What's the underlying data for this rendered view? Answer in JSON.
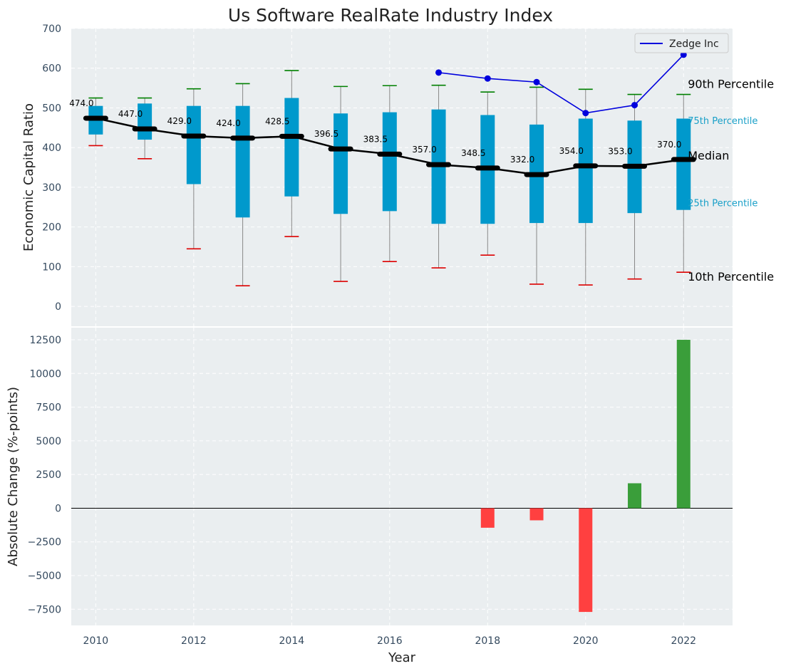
{
  "chart_data": [
    {
      "type": "box",
      "title": "Us Software RealRate Industry Index",
      "xlabel": "",
      "ylabel": "Economic Capital Ratio",
      "ylim": [
        -50,
        700
      ],
      "yticks": [
        0,
        100,
        200,
        300,
        400,
        500,
        600,
        700
      ],
      "xlim": [
        2009.5,
        2023
      ],
      "grid": true,
      "x": [
        2010,
        2011,
        2012,
        2013,
        2014,
        2015,
        2016,
        2017,
        2018,
        2019,
        2020,
        2021,
        2022
      ],
      "p10": [
        405,
        372,
        145,
        52,
        176,
        63,
        113,
        97,
        129,
        56,
        54,
        69,
        86
      ],
      "p25": [
        433,
        420,
        308,
        224,
        277,
        233,
        240,
        208,
        208,
        210,
        210,
        235,
        243
      ],
      "median": [
        474.0,
        447.0,
        429.0,
        424.0,
        428.5,
        396.5,
        383.5,
        357.0,
        348.5,
        332.0,
        354.0,
        353.0,
        370.0
      ],
      "median_labels": [
        "474.0",
        "447.0",
        "429.0",
        "424.0",
        "428.5",
        "396.5",
        "383.5",
        "357.0",
        "348.5",
        "332.0",
        "354.0",
        "353.0",
        "370.0"
      ],
      "p75": [
        505,
        511,
        505,
        505,
        525,
        486,
        489,
        496,
        482,
        458,
        473,
        468,
        473
      ],
      "p90": [
        525,
        525,
        548,
        561,
        594,
        554,
        556,
        557,
        540,
        552,
        547,
        534,
        534
      ],
      "series": [
        {
          "name": "Zedge Inc",
          "color": "#0000dd",
          "x": [
            2017,
            2018,
            2019,
            2020,
            2021,
            2022
          ],
          "values": [
            589,
            574,
            565,
            487,
            507,
            634
          ]
        }
      ],
      "legend": "top-right",
      "annotations": [
        {
          "text": "90th Percentile",
          "y": 550,
          "color": "black"
        },
        {
          "text": "75th Percentile",
          "y": 460,
          "color": "#1aa0c8"
        },
        {
          "text": "Median",
          "y": 370,
          "color": "black"
        },
        {
          "text": "25th Percentile",
          "y": 252,
          "color": "#1aa0c8"
        },
        {
          "text": "10th Percentile",
          "y": 65,
          "color": "black"
        }
      ],
      "xticks": [
        2010,
        2012,
        2014,
        2016,
        2018,
        2020,
        2022
      ]
    },
    {
      "type": "bar",
      "title": "",
      "xlabel": "Year",
      "ylabel": "Absolute Change (%-points)",
      "ylim": [
        -8700,
        13400
      ],
      "yticks": [
        -7500,
        -5000,
        -2500,
        0,
        2500,
        5000,
        7500,
        10000,
        12500
      ],
      "ytick_labels": [
        "−7500",
        "−5000",
        "−2500",
        "0",
        "2500",
        "5000",
        "7500",
        "10000",
        "12500"
      ],
      "xticks": [
        2010,
        2012,
        2014,
        2016,
        2018,
        2020,
        2022
      ],
      "xlim": [
        2009.5,
        2023
      ],
      "grid": true,
      "x": [
        2018,
        2019,
        2020,
        2021,
        2022
      ],
      "values": [
        -1450,
        -900,
        -7700,
        1850,
        12500
      ],
      "colors": {
        "positive": "#3a9e3a",
        "negative": "#ff4040"
      }
    }
  ]
}
